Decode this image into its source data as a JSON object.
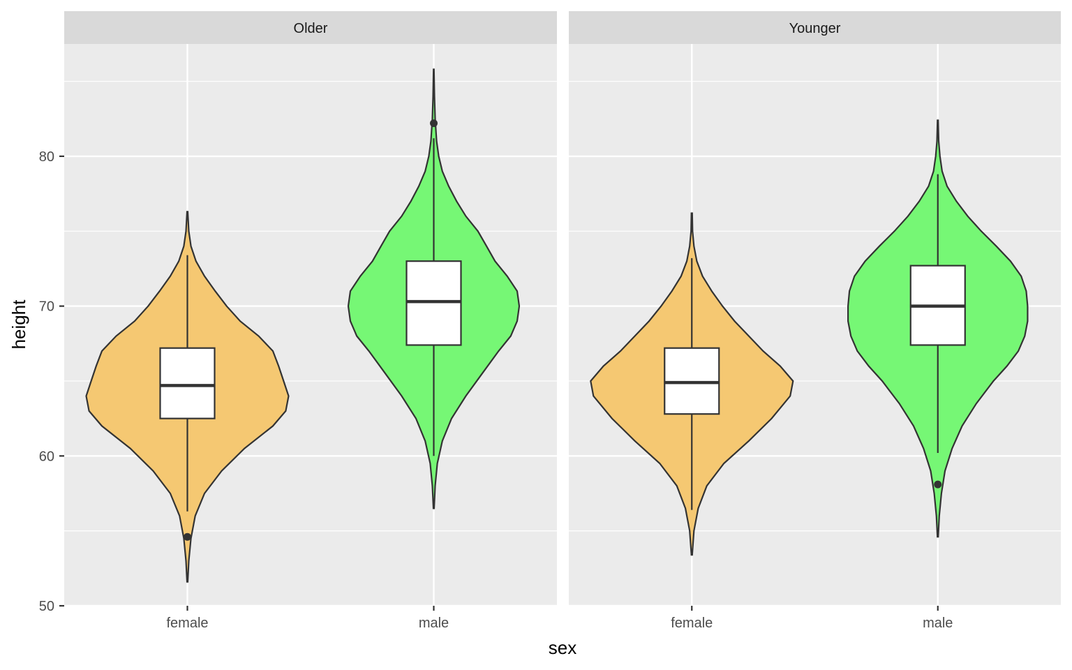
{
  "chart_data": {
    "type": "violin",
    "xlabel": "sex",
    "ylabel": "height",
    "ylim": [
      50,
      87
    ],
    "yticks": [
      50,
      60,
      70,
      80
    ],
    "grid": true,
    "legend": "none",
    "categories": [
      "female",
      "male"
    ],
    "colors": {
      "female": "#f5c872",
      "male": "#76f775",
      "panel_bg": "#ebebeb",
      "strip_bg": "#d9d9d9",
      "outline": "#333333",
      "box_fill": "#ffffff"
    },
    "panels": [
      {
        "name": "Older",
        "groups": [
          {
            "category": "female",
            "violin_range": [
              51.6,
              76.3
            ],
            "box": {
              "q1": 62.5,
              "median": 64.7,
              "q3": 67.2,
              "whisker_low": 56.3,
              "whisker_high": 73.4
            },
            "outliers": [
              54.6
            ],
            "density": [
              [
                51.6,
                0.005
              ],
              [
                53,
                0.02
              ],
              [
                54.5,
                0.05
              ],
              [
                56,
                0.11
              ],
              [
                57.5,
                0.24
              ],
              [
                59,
                0.48
              ],
              [
                60.5,
                0.8
              ],
              [
                62,
                1.2
              ],
              [
                63,
                1.38
              ],
              [
                64,
                1.42
              ],
              [
                65,
                1.35
              ],
              [
                66,
                1.28
              ],
              [
                67,
                1.2
              ],
              [
                68,
                1.0
              ],
              [
                69,
                0.74
              ],
              [
                70,
                0.55
              ],
              [
                71,
                0.39
              ],
              [
                72,
                0.24
              ],
              [
                73,
                0.12
              ],
              [
                74,
                0.05
              ],
              [
                75,
                0.02
              ],
              [
                76.3,
                0.005
              ]
            ]
          },
          {
            "category": "male",
            "violin_range": [
              56.5,
              85.8
            ],
            "box": {
              "q1": 67.4,
              "median": 70.3,
              "q3": 73.0,
              "whisker_low": 60.0,
              "whisker_high": 81.2
            },
            "outliers": [
              82.2
            ],
            "density": [
              [
                56.5,
                0.005
              ],
              [
                58,
                0.02
              ],
              [
                59.5,
                0.05
              ],
              [
                61,
                0.12
              ],
              [
                62.5,
                0.25
              ],
              [
                64,
                0.45
              ],
              [
                65.5,
                0.68
              ],
              [
                67,
                0.91
              ],
              [
                68,
                1.08
              ],
              [
                69,
                1.17
              ],
              [
                70,
                1.2
              ],
              [
                71,
                1.17
              ],
              [
                72,
                1.03
              ],
              [
                73,
                0.86
              ],
              [
                74,
                0.74
              ],
              [
                75,
                0.62
              ],
              [
                76,
                0.45
              ],
              [
                77,
                0.32
              ],
              [
                78,
                0.21
              ],
              [
                79,
                0.12
              ],
              [
                80,
                0.07
              ],
              [
                81,
                0.04
              ],
              [
                82.5,
                0.02
              ],
              [
                84,
                0.01
              ],
              [
                85.8,
                0.003
              ]
            ]
          }
        ]
      },
      {
        "name": "Younger",
        "groups": [
          {
            "category": "female",
            "violin_range": [
              53.4,
              76.2
            ],
            "box": {
              "q1": 62.8,
              "median": 64.9,
              "q3": 67.2,
              "whisker_low": 56.4,
              "whisker_high": 73.2
            },
            "outliers": [],
            "density": [
              [
                53.4,
                0.005
              ],
              [
                55,
                0.03
              ],
              [
                56.5,
                0.09
              ],
              [
                58,
                0.21
              ],
              [
                59.5,
                0.45
              ],
              [
                61,
                0.8
              ],
              [
                62.5,
                1.12
              ],
              [
                64,
                1.38
              ],
              [
                65,
                1.42
              ],
              [
                66,
                1.24
              ],
              [
                67,
                1.0
              ],
              [
                68,
                0.8
              ],
              [
                69,
                0.6
              ],
              [
                70,
                0.43
              ],
              [
                71,
                0.28
              ],
              [
                72,
                0.15
              ],
              [
                73,
                0.07
              ],
              [
                74,
                0.03
              ],
              [
                75,
                0.01
              ],
              [
                76.2,
                0.005
              ]
            ]
          },
          {
            "category": "male",
            "violin_range": [
              54.6,
              82.4
            ],
            "box": {
              "q1": 67.4,
              "median": 70.0,
              "q3": 72.7,
              "whisker_low": 60.2,
              "whisker_high": 78.8
            },
            "outliers": [
              58.1
            ],
            "density": [
              [
                54.6,
                0.005
              ],
              [
                56,
                0.02
              ],
              [
                57.5,
                0.05
              ],
              [
                59,
                0.1
              ],
              [
                60.5,
                0.2
              ],
              [
                62,
                0.34
              ],
              [
                63.5,
                0.54
              ],
              [
                65,
                0.78
              ],
              [
                66,
                0.97
              ],
              [
                67,
                1.13
              ],
              [
                68,
                1.22
              ],
              [
                69,
                1.26
              ],
              [
                70,
                1.26
              ],
              [
                71,
                1.24
              ],
              [
                72,
                1.17
              ],
              [
                73,
                1.02
              ],
              [
                74,
                0.82
              ],
              [
                75,
                0.61
              ],
              [
                76,
                0.42
              ],
              [
                77,
                0.26
              ],
              [
                78,
                0.13
              ],
              [
                79,
                0.06
              ],
              [
                80,
                0.03
              ],
              [
                81,
                0.012
              ],
              [
                82.4,
                0.004
              ]
            ]
          }
        ]
      }
    ]
  }
}
